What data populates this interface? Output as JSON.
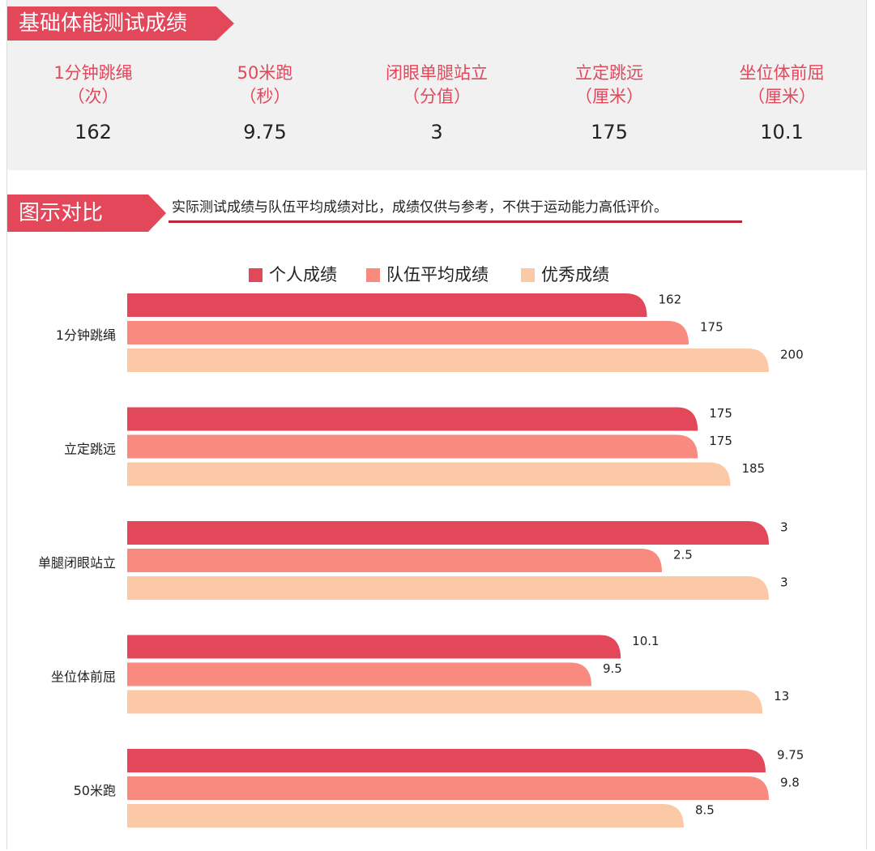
{
  "header": {
    "title": "基础体能测试成绩"
  },
  "metrics": [
    {
      "name": "1分钟跳绳",
      "unit": "（次）",
      "value": "162"
    },
    {
      "name": "50米跑",
      "unit": "（秒）",
      "value": "9.75"
    },
    {
      "name": "闭眼单腿站立",
      "unit": "（分值）",
      "value": "3"
    },
    {
      "name": "立定跳远",
      "unit": "（厘米）",
      "value": "175"
    },
    {
      "name": "坐位体前屈",
      "unit": "（厘米）",
      "value": "10.1"
    }
  ],
  "section2": {
    "title": "图示对比",
    "note": "实际测试成绩与队伍平均成绩对比，成绩仅供与参考，不供于运动能力高低评价。"
  },
  "colors": {
    "accent": "#e2475a",
    "series": [
      "#e2475a",
      "#f98a80",
      "#fcc9a6"
    ]
  },
  "chart_data": {
    "type": "bar",
    "orientation": "horizontal",
    "categories": [
      "1分钟跳绳",
      "立定跳远",
      "单腿闭眼站立",
      "坐位体前屈",
      "50米跑"
    ],
    "series": [
      {
        "name": "个人成绩",
        "values": [
          162,
          175,
          3,
          10.1,
          9.75
        ],
        "labels": [
          "162",
          "175",
          "3",
          "10.1",
          "9.75"
        ]
      },
      {
        "name": "队伍平均成绩",
        "values": [
          175,
          175,
          2.5,
          9.5,
          9.8
        ],
        "labels": [
          "175",
          "175",
          "2.5",
          "9.5",
          "9.8"
        ]
      },
      {
        "name": "优秀成绩",
        "values": [
          200,
          185,
          3,
          13,
          8.5
        ],
        "labels": [
          "200",
          "185",
          "3",
          "13",
          "8.5"
        ]
      }
    ],
    "legend": "top-center",
    "grid": false,
    "note": "Each category group appears scaled independently"
  }
}
